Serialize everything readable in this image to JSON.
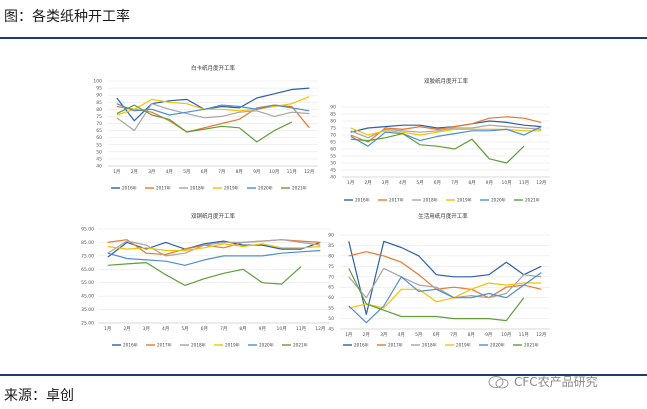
{
  "page": {
    "title": "图：各类纸种开工率",
    "source": "来源：卓创",
    "watermark": "CFC农产品研究"
  },
  "colors": {
    "accent_rule": "#1f3b73",
    "series": [
      "#2e5fa8",
      "#e8772e",
      "#a5a5a5",
      "#f5c200",
      "#4d8fd1",
      "#5f9e3a"
    ]
  },
  "months": [
    "1月",
    "2月",
    "3月",
    "4月",
    "5月",
    "6月",
    "7月",
    "8月",
    "9月",
    "10月",
    "11月",
    "12月"
  ],
  "legend": [
    "2016年",
    "2017年",
    "2018年",
    "2019年",
    "2020年",
    "2021年"
  ],
  "chart_data": [
    {
      "type": "line",
      "title": "白卡纸月度开工率",
      "categories": [
        "1月",
        "2月",
        "3月",
        "4月",
        "5月",
        "6月",
        "7月",
        "8月",
        "9月",
        "10月",
        "11月",
        "12月"
      ],
      "ylim": [
        40,
        100
      ],
      "yticks": [
        "40",
        "45",
        "50",
        "55",
        "60",
        "65",
        "70",
        "75",
        "80",
        "85",
        "90",
        "95",
        "100"
      ],
      "series": [
        {
          "name": "2016年",
          "values": [
            88,
            72,
            84,
            86,
            87,
            80,
            82,
            81,
            88,
            91,
            94,
            95
          ]
        },
        {
          "name": "2017年",
          "values": [
            82,
            80,
            78,
            72,
            64,
            67,
            70,
            73,
            81,
            83,
            82,
            67
          ]
        },
        {
          "name": "2018年",
          "values": [
            74,
            65,
            84,
            80,
            77,
            74,
            75,
            78,
            79,
            75,
            78,
            77
          ]
        },
        {
          "name": "2019年",
          "values": [
            76,
            80,
            87,
            85,
            84,
            80,
            80,
            79,
            80,
            82,
            84,
            89
          ]
        },
        {
          "name": "2020年",
          "values": [
            84,
            79,
            80,
            76,
            78,
            80,
            83,
            82,
            80,
            83,
            81,
            79
          ]
        },
        {
          "name": "2021年",
          "values": [
            77,
            83,
            76,
            73,
            64,
            66,
            68,
            67,
            57,
            65,
            71,
            null
          ]
        }
      ]
    },
    {
      "type": "line",
      "title": "双胶纸月度开工率",
      "categories": [
        "1月",
        "2月",
        "3月",
        "4月",
        "5月",
        "6月",
        "7月",
        "8月",
        "9月",
        "10月",
        "11月",
        "12月"
      ],
      "ylim": [
        40,
        90
      ],
      "yticks": [
        "40",
        "45",
        "50",
        "55",
        "60",
        "65",
        "70",
        "75",
        "80",
        "85",
        "90"
      ],
      "series": [
        {
          "name": "2016年",
          "values": [
            72,
            75,
            76,
            77,
            77,
            75,
            76,
            78,
            80,
            79,
            77,
            76
          ]
        },
        {
          "name": "2017年",
          "values": [
            70,
            65,
            75,
            74,
            76,
            74,
            76,
            78,
            82,
            83,
            82,
            79
          ]
        },
        {
          "name": "2018年",
          "values": [
            73,
            68,
            74,
            73,
            72,
            73,
            75,
            75,
            77,
            76,
            75,
            74
          ]
        },
        {
          "name": "2019年",
          "values": [
            75,
            70,
            73,
            72,
            70,
            72,
            74,
            74,
            74,
            74,
            73,
            73
          ]
        },
        {
          "name": "2020年",
          "values": [
            69,
            62,
            72,
            71,
            66,
            69,
            71,
            73,
            73,
            74,
            70,
            76
          ]
        },
        {
          "name": "2021年",
          "values": [
            67,
            66,
            68,
            71,
            63,
            62,
            60,
            67,
            53,
            50,
            62,
            null
          ]
        }
      ]
    },
    {
      "type": "line",
      "title": "双铜纸月度开工率",
      "categories": [
        "1月",
        "2月",
        "3月",
        "4月",
        "5月",
        "6月",
        "7月",
        "8月",
        "9月",
        "10月",
        "11月",
        "12月"
      ],
      "ylim": [
        25,
        95
      ],
      "yticks": [
        "25.00",
        "35.00",
        "45.00",
        "55.00",
        "65.00",
        "75.00",
        "85.00",
        "95.00"
      ],
      "series": [
        {
          "name": "2016年",
          "values": [
            74,
            85,
            80,
            85,
            80,
            84,
            86,
            83,
            83,
            80,
            80,
            85
          ]
        },
        {
          "name": "2017年",
          "values": [
            85,
            87,
            77,
            76,
            80,
            83,
            81,
            85,
            86,
            87,
            86,
            85
          ]
        },
        {
          "name": "2018年",
          "values": [
            77,
            86,
            83,
            75,
            77,
            83,
            85,
            85,
            86,
            87,
            85,
            83
          ]
        },
        {
          "name": "2019年",
          "values": [
            82,
            80,
            81,
            79,
            79,
            81,
            84,
            82,
            84,
            81,
            81,
            82
          ]
        },
        {
          "name": "2020年",
          "values": [
            77,
            73,
            72,
            71,
            68,
            72,
            75,
            75,
            75,
            77,
            78,
            79
          ]
        },
        {
          "name": "2021年",
          "values": [
            68,
            69,
            70,
            61,
            53,
            58,
            62,
            65,
            55,
            54,
            67,
            null
          ]
        }
      ]
    },
    {
      "type": "line",
      "title": "生活用纸月度开工率",
      "categories": [
        "1月",
        "2月",
        "3月",
        "4月",
        "5月",
        "6月",
        "7月",
        "8月",
        "9月",
        "10月",
        "11月",
        "12月"
      ],
      "ylim": [
        45,
        90
      ],
      "yticks": [
        "45",
        "50",
        "55",
        "60",
        "65",
        "70",
        "75",
        "80",
        "85",
        "90"
      ],
      "series": [
        {
          "name": "2016年",
          "values": [
            87,
            52,
            87,
            84,
            80,
            71,
            70,
            70,
            71,
            77,
            71,
            75
          ]
        },
        {
          "name": "2017年",
          "values": [
            80,
            82,
            80,
            77,
            71,
            64,
            65,
            64,
            60,
            65,
            66,
            64
          ]
        },
        {
          "name": "2018年",
          "values": [
            70,
            60,
            74,
            70,
            66,
            65,
            60,
            61,
            60,
            62,
            71,
            70
          ]
        },
        {
          "name": "2019年",
          "values": [
            55,
            57,
            55,
            64,
            64,
            58,
            60,
            64,
            67,
            66,
            67,
            67
          ]
        },
        {
          "name": "2020年",
          "values": [
            56,
            48,
            56,
            70,
            63,
            64,
            60,
            60,
            62,
            60,
            66,
            72
          ]
        },
        {
          "name": "2021年",
          "values": [
            74,
            57,
            54,
            51,
            51,
            51,
            50,
            50,
            50,
            49,
            60,
            null
          ]
        }
      ]
    }
  ]
}
